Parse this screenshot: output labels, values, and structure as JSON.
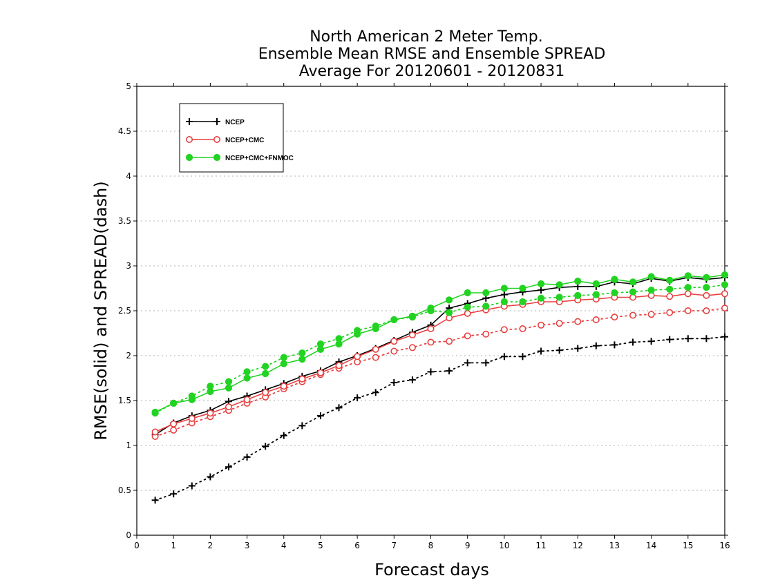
{
  "chart_data": {
    "type": "line",
    "title_lines": [
      "North American 2 Meter Temp.",
      "Ensemble Mean RMSE and Ensemble SPREAD",
      "Average For 20120601 - 20120831"
    ],
    "xlabel": "Forecast days",
    "ylabel": "RMSE(solid) and SPREAD(dash)",
    "xlim": [
      0,
      16
    ],
    "ylim": [
      0,
      5
    ],
    "xticks": [
      0,
      1,
      2,
      3,
      4,
      5,
      6,
      7,
      8,
      9,
      10,
      11,
      12,
      13,
      14,
      15,
      16
    ],
    "xtick_labels": [
      "0",
      "1",
      "2",
      "3",
      "4",
      "5",
      "6",
      "7",
      "8",
      "9",
      "10",
      "11",
      "12",
      "13",
      "14",
      "15",
      "16"
    ],
    "yticks": [
      0,
      0.5,
      1,
      1.5,
      2,
      2.5,
      3,
      3.5,
      4,
      4.5,
      5
    ],
    "ytick_labels": [
      "0",
      "0.5",
      "1",
      "1.5",
      "2",
      "2.5",
      "3",
      "3.5",
      "4",
      "4.5",
      "5"
    ],
    "grid": true,
    "legend_position": "top-left",
    "x": [
      0.5,
      1,
      1.5,
      2,
      2.5,
      3,
      3.5,
      4,
      4.5,
      5,
      5.5,
      6,
      6.5,
      7,
      7.5,
      8,
      8.5,
      9,
      9.5,
      10,
      10.5,
      11,
      11.5,
      12,
      12.5,
      13,
      13.5,
      14,
      14.5,
      15,
      15.5,
      16
    ],
    "series": [
      {
        "name": "NCEP",
        "color": "#000000",
        "marker": "plus",
        "rmse": [
          1.12,
          1.25,
          1.33,
          1.39,
          1.49,
          1.55,
          1.62,
          1.69,
          1.77,
          1.83,
          1.93,
          2.0,
          2.08,
          2.17,
          2.26,
          2.34,
          2.53,
          2.58,
          2.64,
          2.68,
          2.71,
          2.73,
          2.76,
          2.77,
          2.77,
          2.82,
          2.8,
          2.86,
          2.83,
          2.87,
          2.85,
          2.87
        ],
        "spread": [
          0.39,
          0.46,
          0.55,
          0.65,
          0.76,
          0.87,
          0.99,
          1.11,
          1.22,
          1.33,
          1.42,
          1.53,
          1.59,
          1.7,
          1.73,
          1.82,
          1.83,
          1.92,
          1.92,
          1.99,
          1.99,
          2.05,
          2.06,
          2.08,
          2.11,
          2.12,
          2.15,
          2.16,
          2.18,
          2.19,
          2.19,
          2.21
        ]
      },
      {
        "name": "NCEP+CMC",
        "color": "#e84040",
        "marker": "open-circle",
        "rmse": [
          1.15,
          1.24,
          1.3,
          1.36,
          1.43,
          1.51,
          1.59,
          1.66,
          1.74,
          1.81,
          1.89,
          1.99,
          2.07,
          2.16,
          2.23,
          2.3,
          2.42,
          2.47,
          2.51,
          2.55,
          2.57,
          2.6,
          2.6,
          2.62,
          2.63,
          2.65,
          2.65,
          2.67,
          2.66,
          2.69,
          2.67,
          2.69
        ],
        "spread": [
          1.1,
          1.17,
          1.25,
          1.32,
          1.39,
          1.47,
          1.54,
          1.63,
          1.71,
          1.79,
          1.86,
          1.93,
          1.98,
          2.05,
          2.09,
          2.15,
          2.16,
          2.22,
          2.24,
          2.29,
          2.3,
          2.34,
          2.36,
          2.38,
          2.4,
          2.43,
          2.45,
          2.46,
          2.48,
          2.5,
          2.5,
          2.53
        ]
      },
      {
        "name": "NCEP+CMC+FNMOC",
        "color": "#22d322",
        "marker": "filled-circle",
        "rmse": [
          1.37,
          1.47,
          1.51,
          1.6,
          1.64,
          1.75,
          1.8,
          1.91,
          1.96,
          2.07,
          2.13,
          2.24,
          2.3,
          2.4,
          2.44,
          2.53,
          2.62,
          2.7,
          2.7,
          2.75,
          2.75,
          2.8,
          2.79,
          2.83,
          2.8,
          2.85,
          2.82,
          2.88,
          2.84,
          2.89,
          2.87,
          2.9
        ],
        "spread": [
          1.36,
          1.47,
          1.55,
          1.66,
          1.71,
          1.82,
          1.88,
          1.98,
          2.03,
          2.13,
          2.19,
          2.28,
          2.33,
          2.4,
          2.43,
          2.5,
          2.48,
          2.54,
          2.55,
          2.6,
          2.6,
          2.64,
          2.65,
          2.67,
          2.68,
          2.7,
          2.71,
          2.73,
          2.74,
          2.76,
          2.76,
          2.79
        ]
      }
    ]
  }
}
